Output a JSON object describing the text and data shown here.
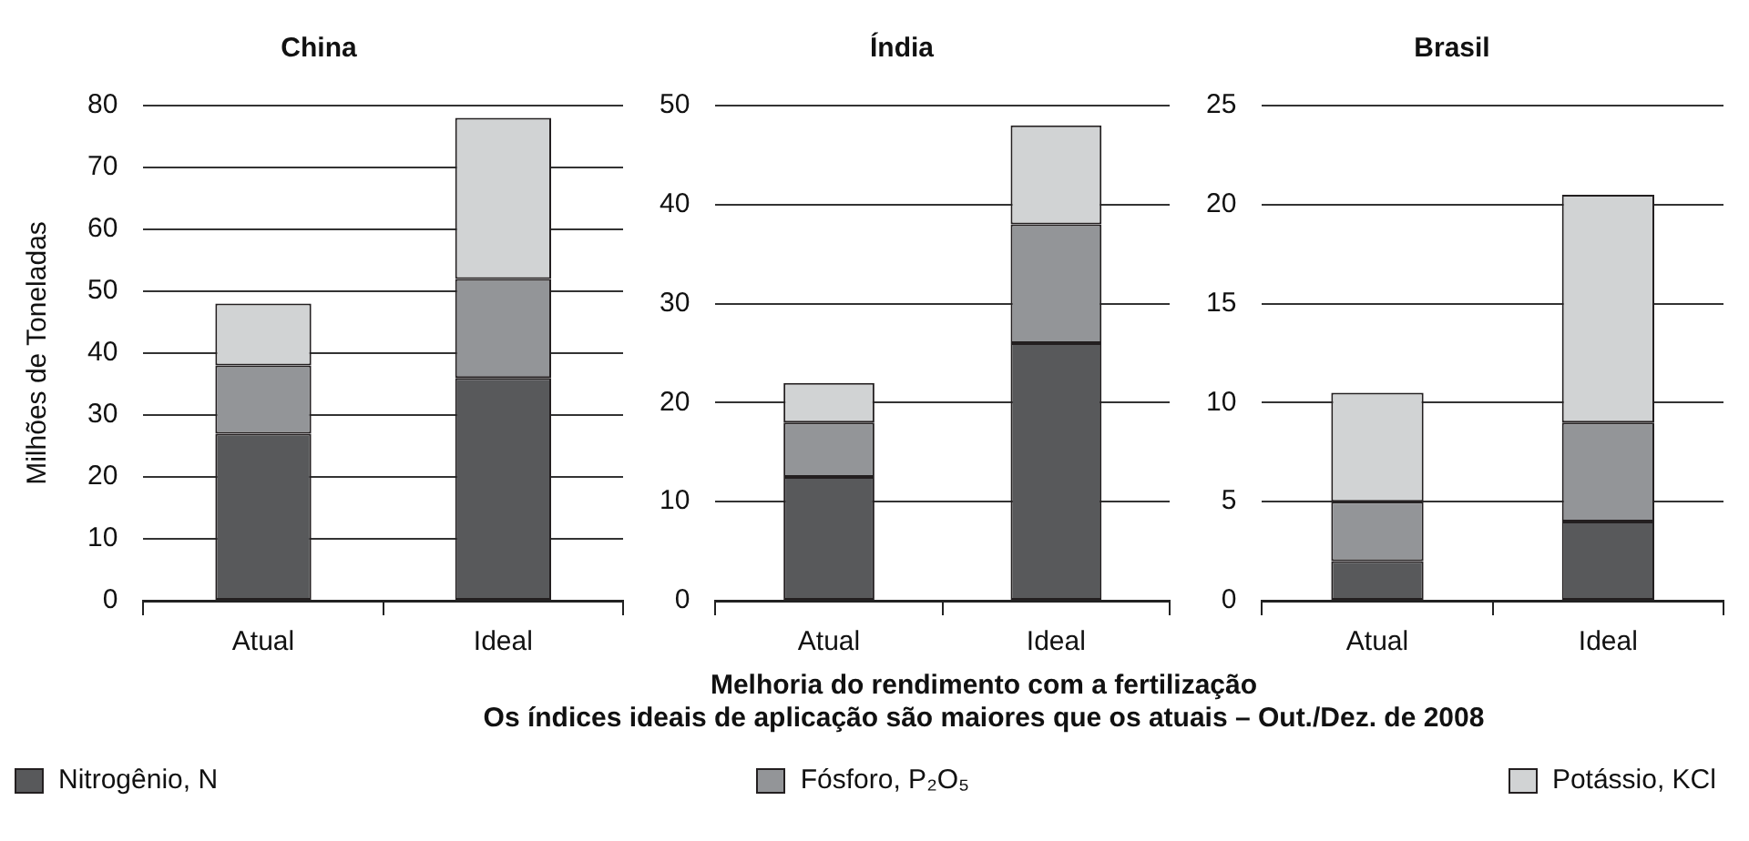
{
  "chart_data": [
    {
      "type": "bar",
      "title": "China",
      "ylabel": "Milhões de Toneladas",
      "categories": [
        "Atual",
        "Ideal"
      ],
      "stacked": true,
      "ylim": [
        0,
        80
      ],
      "yticks": [
        0,
        10,
        20,
        30,
        40,
        50,
        60,
        70,
        80
      ],
      "grid": "y",
      "legend": "bottom",
      "annotations": [
        "Melhoria do rendimento com a fertilização",
        "Os índices ideais de aplicação são maiores que os atuais  – Out./Dez. de 2008"
      ],
      "series": [
        {
          "name": "Nitrogênio, N",
          "color": "#58595b",
          "values": [
            27,
            36
          ]
        },
        {
          "name": "Fósforo, P₂O₅",
          "color": "#939598",
          "values": [
            11,
            16
          ]
        },
        {
          "name": "Potássio, KCl",
          "color": "#d1d3d4",
          "values": [
            10,
            26
          ]
        }
      ]
    },
    {
      "type": "bar",
      "title": "Índia",
      "categories": [
        "Atual",
        "Ideal"
      ],
      "stacked": true,
      "ylim": [
        0,
        50
      ],
      "yticks": [
        0,
        10,
        20,
        30,
        40,
        50
      ],
      "grid": "y",
      "series": [
        {
          "color": "#58595b",
          "values": [
            12.5,
            26
          ]
        },
        {
          "color": "#939598",
          "values": [
            5.5,
            12
          ]
        },
        {
          "color": "#d1d3d4",
          "values": [
            4,
            10
          ]
        }
      ]
    },
    {
      "type": "bar",
      "title": "Brasil",
      "categories": [
        "Atual",
        "Ideal"
      ],
      "stacked": true,
      "ylim": [
        0,
        25
      ],
      "yticks": [
        0,
        5,
        10,
        15,
        20,
        25
      ],
      "grid": "y",
      "series": [
        {
          "color": "#58595b",
          "values": [
            2,
            4
          ]
        },
        {
          "color": "#939598",
          "values": [
            3,
            5
          ]
        },
        {
          "color": "#d1d3d4",
          "values": [
            5.5,
            11.5
          ]
        }
      ]
    }
  ]
}
